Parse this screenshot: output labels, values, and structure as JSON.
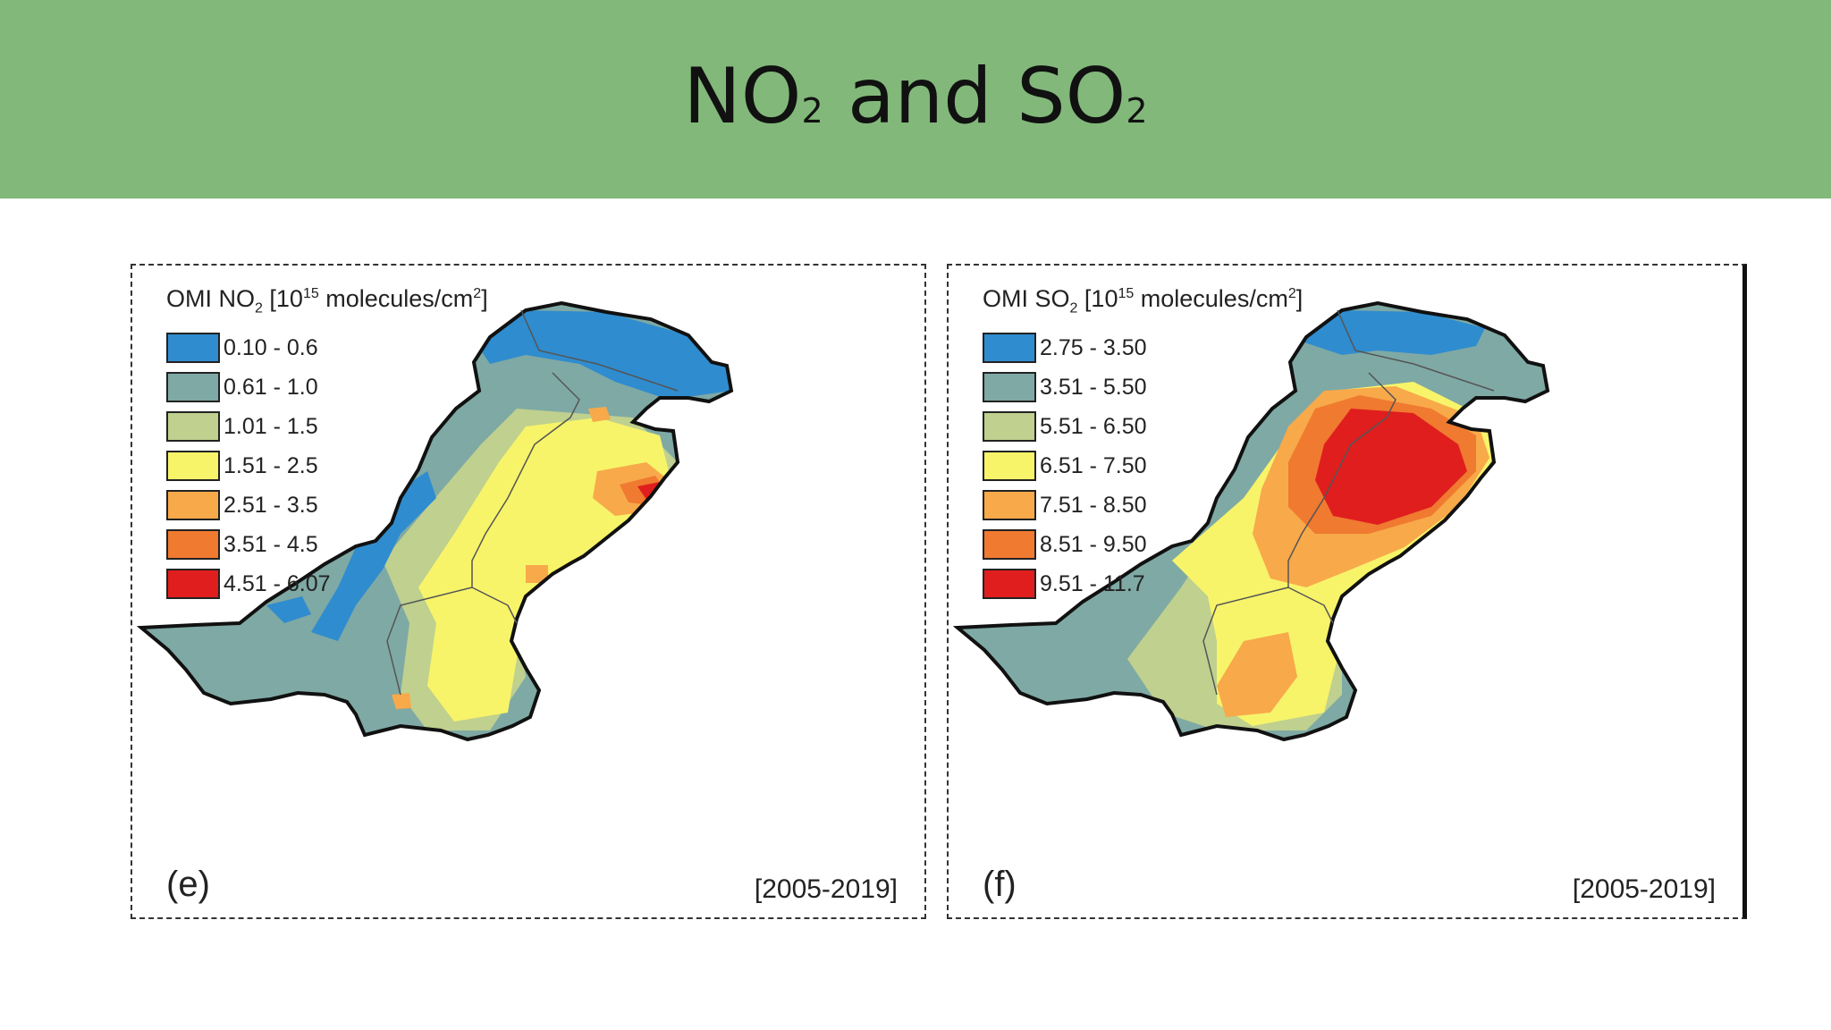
{
  "slide": {
    "title_a": "NO",
    "title_a_sub": "2",
    "title_mid": " and SO",
    "title_b_sub": "2",
    "header_color": "#82b87a"
  },
  "maps": [
    {
      "legend_prefix": "OMI NO",
      "legend_sub": "2",
      "legend_mid": " [10",
      "legend_sup": "15",
      "legend_unit": " molecules/cm",
      "legend_unit_sup": "2",
      "legend_end": "]",
      "classes": [
        {
          "label": "0.10 - 0.6",
          "color": "#2f8ccf"
        },
        {
          "label": "0.61 - 1.0",
          "color": "#7fa9a4"
        },
        {
          "label": "1.01 - 1.5",
          "color": "#bfd08f"
        },
        {
          "label": "1.51 - 2.5",
          "color": "#f7f46a"
        },
        {
          "label": "2.51 - 3.5",
          "color": "#f8a94a"
        },
        {
          "label": "3.51 - 4.5",
          "color": "#ef7a30"
        },
        {
          "label": "4.51 - 6.07",
          "color": "#e01e1e"
        }
      ],
      "letter": "(e)",
      "period": "[2005-2019]"
    },
    {
      "legend_prefix": "OMI SO",
      "legend_sub": "2",
      "legend_mid": " [10",
      "legend_sup": "15",
      "legend_unit": " molecules/cm",
      "legend_unit_sup": "2",
      "legend_end": "]",
      "classes": [
        {
          "label": "2.75 - 3.50",
          "color": "#2f8ccf"
        },
        {
          "label": "3.51 - 5.50",
          "color": "#7fa9a4"
        },
        {
          "label": "5.51 - 6.50",
          "color": "#bfd08f"
        },
        {
          "label": "6.51 - 7.50",
          "color": "#f7f46a"
        },
        {
          "label": "7.51 - 8.50",
          "color": "#f8a94a"
        },
        {
          "label": "8.51 - 9.50",
          "color": "#ef7a30"
        },
        {
          "label": "9.51 - 11.7",
          "color": "#e01e1e"
        }
      ],
      "letter": "(f)",
      "period": "[2005-2019]"
    }
  ]
}
